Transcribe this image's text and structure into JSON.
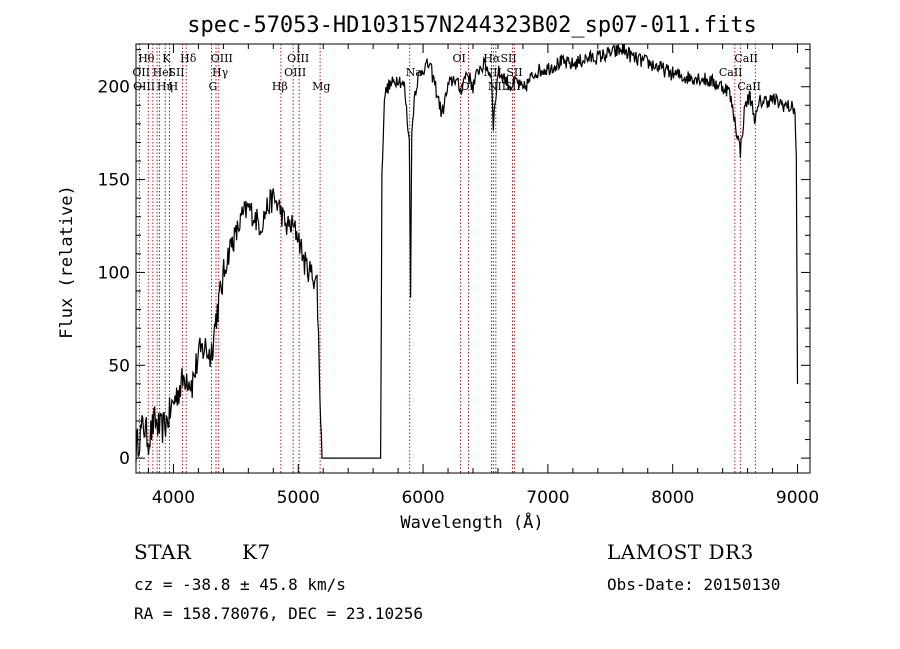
{
  "chart_data": {
    "type": "line",
    "title": "spec-57053-HD103157N244323B02_sp07-011.fits",
    "xlabel": "Wavelength (Å)",
    "ylabel": "Flux (relative)",
    "xlim": [
      3700,
      9100
    ],
    "ylim": [
      -8,
      223
    ],
    "xticks": [
      4000,
      5000,
      6000,
      7000,
      8000,
      9000
    ],
    "yticks": [
      0,
      50,
      100,
      150,
      200
    ],
    "grid": false,
    "series": [
      {
        "name": "flux",
        "x": [
          3700,
          3730,
          3760,
          3800,
          3850,
          3900,
          3950,
          4000,
          4050,
          4100,
          4150,
          4200,
          4250,
          4300,
          4340,
          4380,
          4420,
          4460,
          4500,
          4550,
          4600,
          4650,
          4700,
          4750,
          4800,
          4850,
          4900,
          4950,
          5000,
          5050,
          5100,
          5150,
          5180,
          5190,
          5250,
          5300,
          5400,
          5500,
          5600,
          5660,
          5670,
          5690,
          5720,
          5760,
          5800,
          5850,
          5890,
          5900,
          5910,
          5930,
          5960,
          6000,
          6050,
          6100,
          6150,
          6200,
          6250,
          6300,
          6350,
          6400,
          6450,
          6500,
          6550,
          6563,
          6600,
          6650,
          6700,
          6750,
          6800,
          6900,
          7000,
          7100,
          7200,
          7300,
          7400,
          7500,
          7600,
          7700,
          7800,
          7900,
          8000,
          8100,
          8200,
          8300,
          8400,
          8450,
          8498,
          8542,
          8580,
          8620,
          8662,
          8700,
          8800,
          8900,
          8980,
          8990,
          9000
        ],
        "values": [
          5,
          12,
          18,
          10,
          20,
          15,
          20,
          30,
          38,
          45,
          40,
          55,
          60,
          55,
          75,
          90,
          105,
          115,
          120,
          130,
          135,
          130,
          125,
          135,
          140,
          135,
          125,
          125,
          120,
          105,
          100,
          95,
          20,
          0,
          0,
          0,
          0,
          0,
          0,
          0,
          150,
          195,
          200,
          202,
          205,
          200,
          170,
          90,
          175,
          195,
          205,
          210,
          212,
          200,
          185,
          200,
          205,
          198,
          208,
          200,
          210,
          212,
          205,
          180,
          208,
          205,
          200,
          203,
          198,
          208,
          210,
          213,
          212,
          215,
          216,
          218,
          220,
          215,
          213,
          210,
          207,
          205,
          205,
          203,
          200,
          198,
          182,
          165,
          190,
          195,
          182,
          192,
          193,
          190,
          188,
          160,
          40
        ]
      }
    ],
    "line_markers": [
      {
        "label": "Hθ",
        "x": 3798,
        "row": 0,
        "dx": -10
      },
      {
        "label": "OII",
        "x": 3727,
        "row": 1,
        "dx": -7
      },
      {
        "label": "OIII",
        "x": 3869,
        "row": 2,
        "dx": -24
      },
      {
        "label": "HeI",
        "x": 3889,
        "row": 1,
        "dx": -7
      },
      {
        "label": "Hη",
        "x": 3835,
        "row": 2,
        "dx": 4
      },
      {
        "label": "K",
        "x": 3934,
        "row": 0,
        "dx": -3
      },
      {
        "label": "H",
        "x": 3969,
        "row": 2,
        "dx": -1
      },
      {
        "label": "SII",
        "x": 4072,
        "row": 1,
        "dx": -14
      },
      {
        "label": "Hδ",
        "x": 4102,
        "row": 0,
        "dx": -6
      },
      {
        "label": "G",
        "x": 4305,
        "row": 2,
        "dx": -3
      },
      {
        "label": "OIII",
        "x": 4363,
        "row": 0,
        "dx": -8
      },
      {
        "label": "Hγ",
        "x": 4341,
        "row": 1,
        "dx": -4
      },
      {
        "label": "Hβ",
        "x": 4861,
        "row": 2,
        "dx": -9
      },
      {
        "label": "OIII",
        "x": 4959,
        "row": 1,
        "dx": -9
      },
      {
        "label": "OIII",
        "x": 5007,
        "row": 0,
        "dx": -12
      },
      {
        "label": "Mg",
        "x": 5175,
        "row": 2,
        "dx": -8
      },
      {
        "label": "Na",
        "x": 5893,
        "row": 1,
        "dx": -4
      },
      {
        "label": "OI",
        "x": 6300,
        "row": 0,
        "dx": -8
      },
      {
        "label": "OI",
        "x": 6364,
        "row": 2,
        "dx": -8
      },
      {
        "label": "Hα",
        "x": 6563,
        "row": 0,
        "dx": -10
      },
      {
        "label": "NII",
        "x": 6548,
        "row": 1,
        "dx": -8
      },
      {
        "label": "NII",
        "x": 6583,
        "row": 2,
        "dx": -8
      },
      {
        "label": "SII",
        "x": 6716,
        "row": 0,
        "dx": -12
      },
      {
        "label": "SII",
        "x": 6731,
        "row": 1,
        "dx": -8
      },
      {
        "label": "SII",
        "x": 6716,
        "row": 2,
        "dx": -8
      },
      {
        "label": "CaII",
        "x": 8498,
        "row": 1,
        "dx": -16
      },
      {
        "label": "CaII",
        "x": 8542,
        "row": 0,
        "dx": -6
      },
      {
        "label": "CaII",
        "x": 8662,
        "row": 2,
        "dx": -18
      }
    ]
  },
  "info": {
    "object_class": "STAR",
    "subclass": "K7",
    "redshift": "cz = -38.8 ± 45.8 km/s",
    "coordinates": "RA = 158.78076, DEC =  23.10256",
    "survey": "LAMOST DR3",
    "obs_date": "Obs-Date: 20150130"
  }
}
